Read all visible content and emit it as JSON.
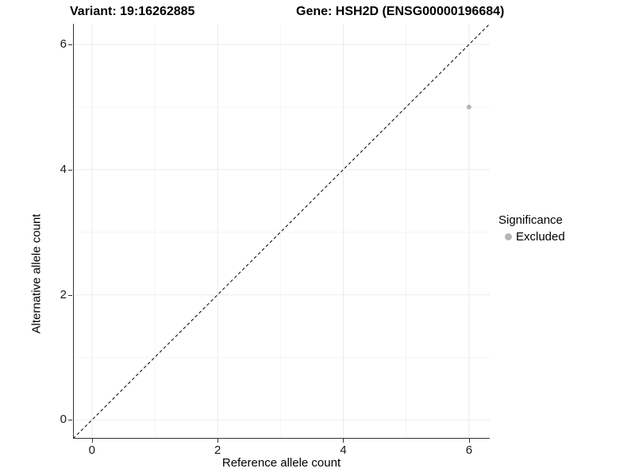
{
  "titles": {
    "variant": "Variant: 19:16262885",
    "gene": "Gene: HSH2D (ENSG00000196684)"
  },
  "legend": {
    "title": "Significance",
    "items": [
      {
        "label": "Excluded",
        "color": "#b5b5b5"
      }
    ]
  },
  "colors": {
    "background": "#ffffff",
    "grid_major": "#ebebeb",
    "grid_minor": "#f5f5f5",
    "axis_line": "#333333",
    "reference_line": "#000000",
    "point": "#b5b5b5"
  },
  "chart_data": {
    "type": "scatter",
    "title": "Variant: 19:16262885 | Gene: HSH2D (ENSG00000196684)",
    "xlabel": "Reference allele count",
    "ylabel": "Alternative allele count",
    "xlim": [
      -0.3,
      6.33
    ],
    "ylim": [
      -0.3,
      6.33
    ],
    "x_ticks": [
      0,
      2,
      4,
      6
    ],
    "y_ticks": [
      0,
      2,
      4,
      6
    ],
    "x_minor_ticks": [
      1,
      3,
      5
    ],
    "y_minor_ticks": [
      1,
      3,
      5
    ],
    "grid": true,
    "legend_position": "right",
    "series": [
      {
        "name": "Excluded",
        "color": "#b5b5b5",
        "points": [
          {
            "x": 6,
            "y": 5
          }
        ]
      }
    ],
    "reference_line": {
      "kind": "identity y=x",
      "style": "dashed",
      "color": "#000000"
    }
  }
}
